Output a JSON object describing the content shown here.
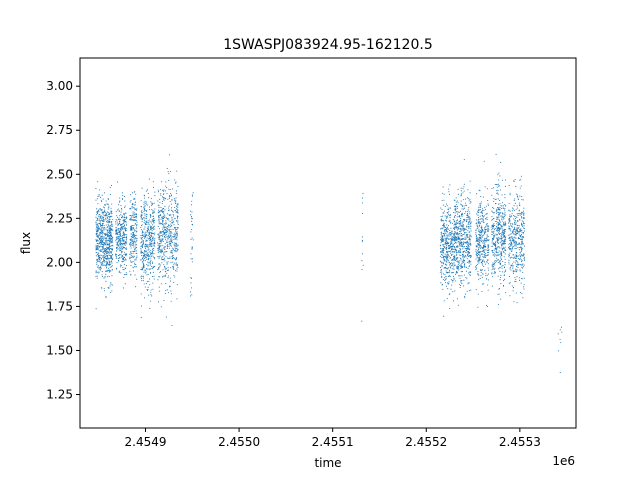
{
  "chart_data": {
    "type": "scatter",
    "title": "1SWASPJ083924.95-162120.5",
    "xlabel": "time",
    "ylabel": "flux",
    "x_offset_label": "1e6",
    "xlim": [
      2454830,
      2455360
    ],
    "ylim": [
      1.06,
      3.16
    ],
    "x_ticks": [
      2454900,
      2455000,
      2455100,
      2455200,
      2455300
    ],
    "x_tick_labels": [
      "2.4549",
      "2.4550",
      "2.4551",
      "2.4552",
      "2.4553"
    ],
    "y_ticks": [
      1.25,
      1.5,
      1.75,
      2.0,
      2.25,
      2.5,
      2.75,
      3.0
    ],
    "y_tick_labels": [
      "1.25",
      "1.50",
      "1.75",
      "2.00",
      "2.25",
      "2.50",
      "2.75",
      "3.00"
    ],
    "marker_color": "#1f77b4",
    "grid": false,
    "clusters": [
      {
        "x_start": 2454847,
        "x_end": 2454865,
        "y_center": 2.12,
        "y_spread": 0.11,
        "count": 700
      },
      {
        "x_start": 2454868,
        "x_end": 2454880,
        "y_center": 2.14,
        "y_spread": 0.1,
        "count": 330
      },
      {
        "x_start": 2454883,
        "x_end": 2454891,
        "y_center": 2.15,
        "y_spread": 0.11,
        "count": 220
      },
      {
        "x_start": 2454895,
        "x_end": 2454910,
        "y_center": 2.12,
        "y_spread": 0.13,
        "count": 450
      },
      {
        "x_start": 2454913,
        "x_end": 2454935,
        "y_center": 2.14,
        "y_spread": 0.15,
        "count": 560
      },
      {
        "x_start": 2454948,
        "x_end": 2454951,
        "y_center": 2.15,
        "y_spread": 0.18,
        "count": 35
      },
      {
        "x_start": 2455131,
        "x_end": 2455133,
        "y_center": 2.1,
        "y_spread": 0.25,
        "count": 12
      },
      {
        "x_start": 2455215,
        "x_end": 2455230,
        "y_center": 2.1,
        "y_spread": 0.12,
        "count": 420
      },
      {
        "x_start": 2455230,
        "x_end": 2455248,
        "y_center": 2.12,
        "y_spread": 0.13,
        "count": 560
      },
      {
        "x_start": 2455253,
        "x_end": 2455267,
        "y_center": 2.12,
        "y_spread": 0.12,
        "count": 380
      },
      {
        "x_start": 2455270,
        "x_end": 2455285,
        "y_center": 2.15,
        "y_spread": 0.14,
        "count": 450
      },
      {
        "x_start": 2455288,
        "x_end": 2455305,
        "y_center": 2.13,
        "y_spread": 0.13,
        "count": 420
      },
      {
        "x_start": 2455340,
        "x_end": 2455345,
        "y_center": 1.55,
        "y_spread": 0.12,
        "count": 8
      }
    ]
  }
}
